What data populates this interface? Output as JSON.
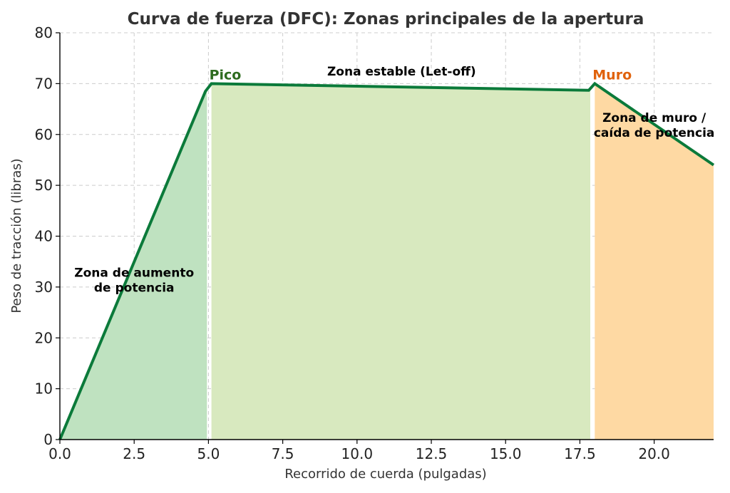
{
  "chart_data": {
    "type": "area",
    "title": "Curva de fuerza (DFC): Zonas principales de la apertura",
    "xlabel": "Recorrido de cuerda (pulgadas)",
    "ylabel": "Peso de tracción (libras)",
    "xlim": [
      0,
      22
    ],
    "ylim": [
      0,
      80
    ],
    "x_ticks": [
      "0.0",
      "2.5",
      "5.0",
      "7.5",
      "10.0",
      "12.5",
      "15.0",
      "17.5",
      "20.0"
    ],
    "y_ticks": [
      "0",
      "10",
      "20",
      "30",
      "40",
      "50",
      "60",
      "70",
      "80"
    ],
    "x_tick_values": [
      0,
      2.5,
      5,
      7.5,
      10,
      12.5,
      15,
      17.5,
      20
    ],
    "y_tick_values": [
      0,
      10,
      20,
      30,
      40,
      50,
      60,
      70,
      80
    ],
    "grid": true,
    "line_color": "#0b7a3a",
    "series": [
      {
        "x": [
          0,
          4.9,
          5.1,
          17.8,
          18.0,
          22.0
        ],
        "y": [
          0,
          68.5,
          70,
          68.7,
          70,
          54
        ]
      }
    ],
    "zones": [
      {
        "label_lines": [
          "Zona de aumento",
          "de potencia"
        ],
        "x_start": 0,
        "x_end": 4.95,
        "color": "#bfe2c0",
        "label_x": 2.5,
        "label_y": 32
      },
      {
        "label_lines": [
          "Zona estable (Let-off)"
        ],
        "x_start": 5.1,
        "x_end": 17.85,
        "color": "#d8e9bf",
        "label_x": 11.5,
        "label_y": 71.6
      },
      {
        "label_lines": [
          "Zona de muro /",
          "caída de potencia"
        ],
        "x_start": 18.0,
        "x_end": 22.0,
        "color": "#fed9a3",
        "label_x": 20.0,
        "label_y": 62.5
      }
    ],
    "points": [
      {
        "label": "Pico",
        "x": 5.1,
        "y": 70,
        "color": "#2e6b1f"
      },
      {
        "label": "Muro",
        "x": 18.0,
        "y": 70,
        "color": "#e0620c"
      }
    ]
  }
}
